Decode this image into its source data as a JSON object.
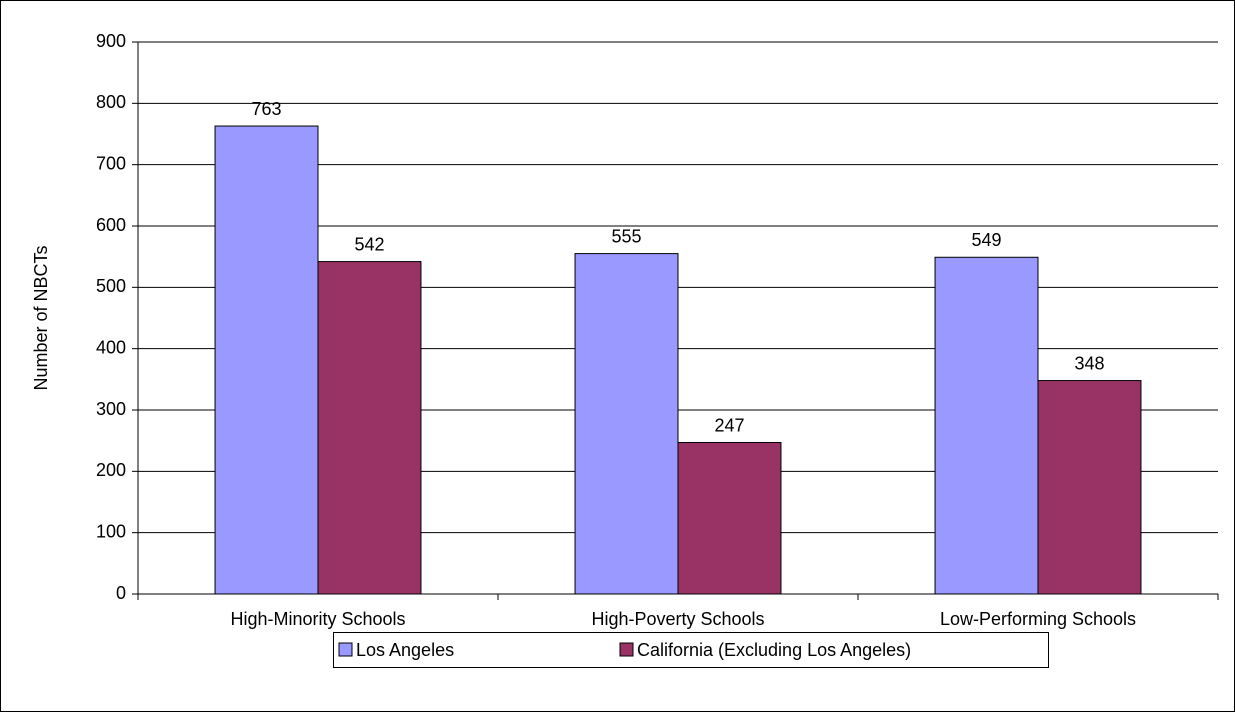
{
  "chart_data": {
    "type": "bar",
    "y_label": "Number of NBCTs",
    "categories": [
      "High-Minority Schools",
      "High-Poverty Schools",
      "Low-Performing Schools"
    ],
    "series": [
      {
        "name": "Los Angeles",
        "color": "#9999ff",
        "values": [
          763,
          555,
          549
        ]
      },
      {
        "name": "California (Excluding Los Angeles)",
        "color": "#993366",
        "values": [
          542,
          247,
          348
        ]
      }
    ],
    "ylim": [
      0,
      900
    ],
    "yticks": [
      0,
      100,
      200,
      300,
      400,
      500,
      600,
      700,
      800,
      900
    ],
    "grid": true,
    "legend": "bottom"
  }
}
